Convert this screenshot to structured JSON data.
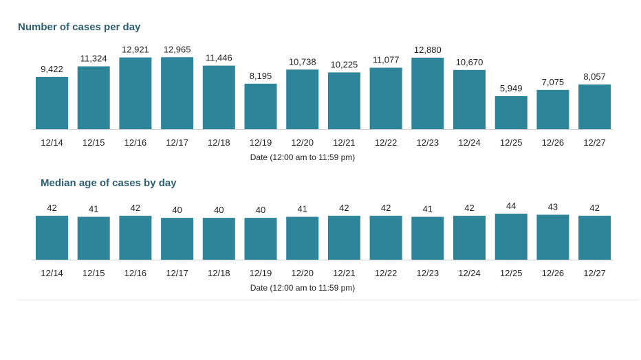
{
  "chart_data": [
    {
      "type": "bar",
      "title": "Number of cases per day",
      "xlabel": "Date (12:00 am to 11:59 pm)",
      "ylabel": "",
      "categories": [
        "12/14",
        "12/15",
        "12/16",
        "12/17",
        "12/18",
        "12/19",
        "12/20",
        "12/21",
        "12/22",
        "12/23",
        "12/24",
        "12/25",
        "12/26",
        "12/27"
      ],
      "values": [
        9422,
        11324,
        12921,
        12965,
        11446,
        8195,
        10738,
        10225,
        11077,
        12880,
        10670,
        5949,
        7075,
        8057
      ],
      "value_labels": [
        "9,422",
        "11,324",
        "12,921",
        "12,965",
        "11,446",
        "8,195",
        "10,738",
        "10,225",
        "11,077",
        "12,880",
        "10,670",
        "5,949",
        "7,075",
        "8,057"
      ],
      "ylim": [
        0,
        13000
      ],
      "grid": false,
      "color": "#2e8499"
    },
    {
      "type": "bar",
      "title": "Median age of cases by day",
      "xlabel": "Date (12:00 am to 11:59 pm)",
      "ylabel": "",
      "categories": [
        "12/14",
        "12/15",
        "12/16",
        "12/17",
        "12/18",
        "12/19",
        "12/20",
        "12/21",
        "12/22",
        "12/23",
        "12/24",
        "12/25",
        "12/26",
        "12/27"
      ],
      "values": [
        42,
        41,
        42,
        40,
        40,
        40,
        41,
        42,
        42,
        41,
        42,
        44,
        43,
        42
      ],
      "value_labels": [
        "42",
        "41",
        "42",
        "40",
        "40",
        "40",
        "41",
        "42",
        "42",
        "41",
        "42",
        "44",
        "43",
        "42"
      ],
      "ylim": [
        0,
        44
      ],
      "grid": false,
      "color": "#2e8499"
    }
  ],
  "colors": {
    "title": "#2f5f72",
    "bar": "#2e8499",
    "text": "#222222"
  }
}
